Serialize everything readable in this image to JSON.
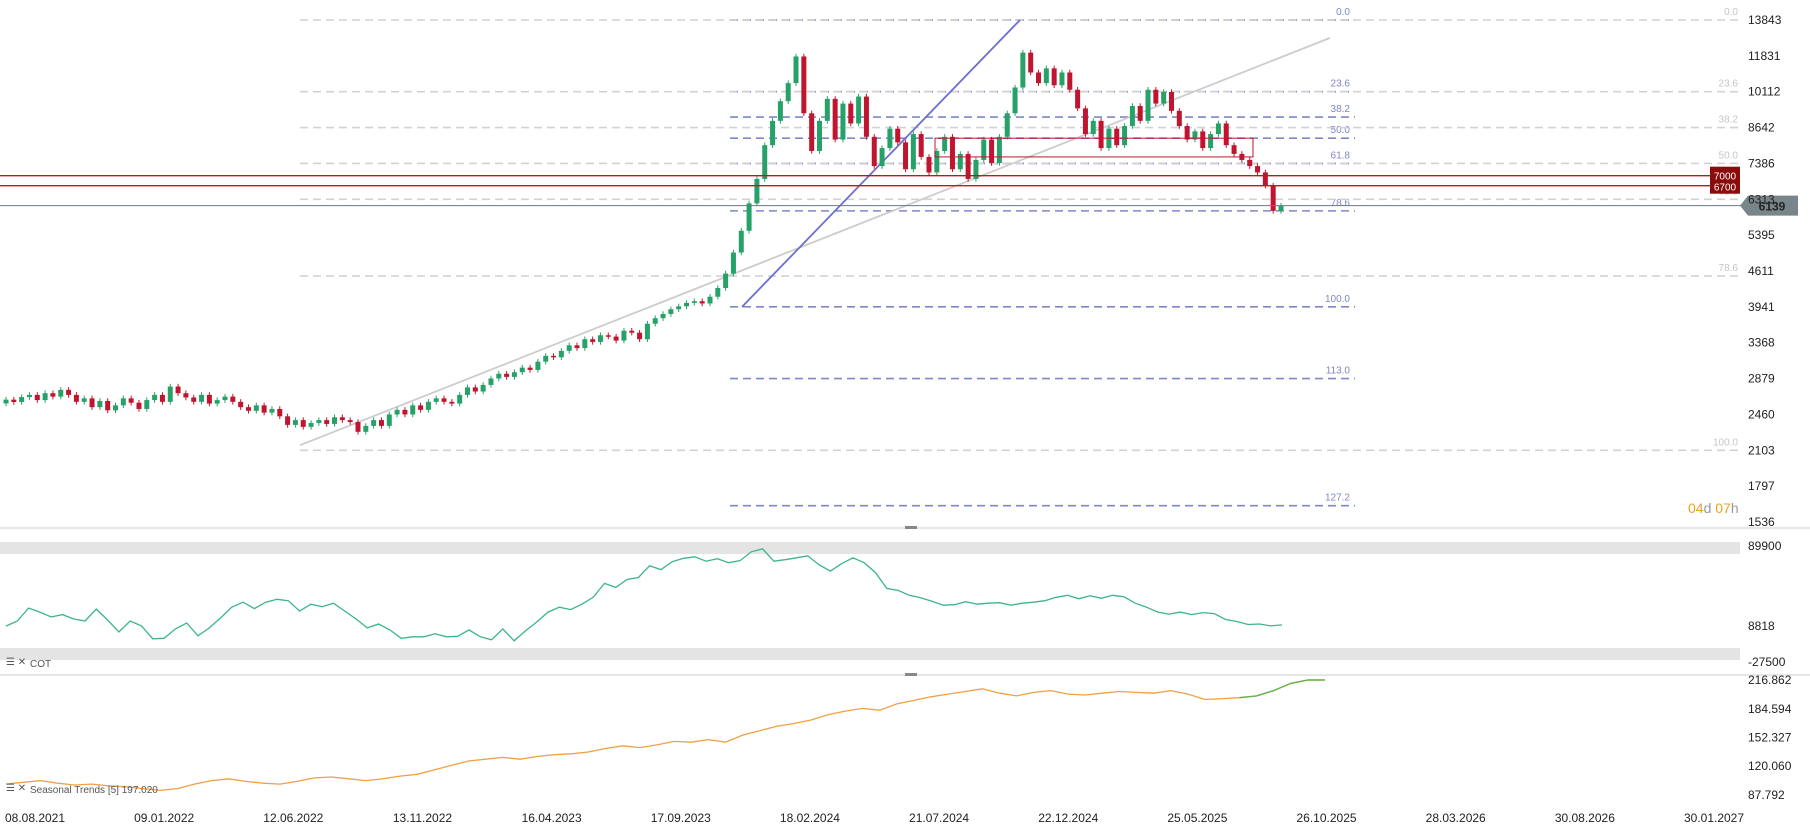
{
  "chart_data": {
    "type": "candlestick",
    "x_dates": [
      "08.08.2021",
      "09.01.2022",
      "12.06.2022",
      "13.11.2022",
      "16.04.2023",
      "17.09.2023",
      "18.02.2024",
      "21.07.2024",
      "22.12.2024",
      "25.05.2025",
      "26.10.2025",
      "28.03.2026",
      "30.08.2026",
      "30.01.2027"
    ],
    "main": {
      "y_ticks": [
        "13843",
        "11831",
        "10112",
        "8642",
        "7386",
        "6313",
        "5395",
        "4611",
        "3941",
        "3368",
        "2879",
        "2460",
        "2103",
        "1797",
        "1536"
      ],
      "last_price": "6139",
      "horizontal_levels": [
        {
          "label": "7000",
          "value": 7000,
          "color": "#b71c1c"
        },
        {
          "label": "6700",
          "value": 6700,
          "color": "#b71c1c"
        }
      ],
      "fib_primary": [
        {
          "label": "0.0",
          "value": 13843
        },
        {
          "label": "23.6",
          "value": 10112
        },
        {
          "label": "38.2",
          "value": 9050
        },
        {
          "label": "50.0",
          "value": 8250
        },
        {
          "label": "61.8",
          "value": 7386
        },
        {
          "label": "78.6",
          "value": 6000
        },
        {
          "label": "100.0",
          "value": 3941
        },
        {
          "label": "113.0",
          "value": 2879
        },
        {
          "label": "127.2",
          "value": 1650
        }
      ],
      "fib_secondary": [
        {
          "label": "0.0",
          "value": 13843
        },
        {
          "label": "23.6",
          "value": 10112
        },
        {
          "label": "38.2",
          "value": 8642
        },
        {
          "label": "50.0",
          "value": 7386
        },
        {
          "label": "61.8",
          "value": 6313
        },
        {
          "label": "78.6",
          "value": 4511
        },
        {
          "label": "100.0",
          "value": 2103
        }
      ],
      "countdown": {
        "days": "04",
        "d": "d",
        "hours": "07",
        "h": "h"
      },
      "candles": [
        [
          2582,
          2625
        ],
        [
          2625,
          2598
        ],
        [
          2598,
          2655
        ],
        [
          2655,
          2680
        ],
        [
          2680,
          2620
        ],
        [
          2620,
          2700
        ],
        [
          2700,
          2660
        ],
        [
          2660,
          2740
        ],
        [
          2740,
          2680
        ],
        [
          2680,
          2600
        ],
        [
          2600,
          2640
        ],
        [
          2640,
          2540
        ],
        [
          2540,
          2610
        ],
        [
          2610,
          2505
        ],
        [
          2505,
          2560
        ],
        [
          2560,
          2640
        ],
        [
          2640,
          2590
        ],
        [
          2590,
          2520
        ],
        [
          2520,
          2620
        ],
        [
          2620,
          2680
        ],
        [
          2680,
          2600
        ],
        [
          2600,
          2780
        ],
        [
          2780,
          2700
        ],
        [
          2700,
          2650
        ],
        [
          2650,
          2600
        ],
        [
          2600,
          2680
        ],
        [
          2680,
          2580
        ],
        [
          2580,
          2620
        ],
        [
          2620,
          2660
        ],
        [
          2660,
          2600
        ],
        [
          2600,
          2540
        ],
        [
          2540,
          2500
        ],
        [
          2500,
          2560
        ],
        [
          2560,
          2480
        ],
        [
          2480,
          2520
        ],
        [
          2520,
          2440
        ],
        [
          2440,
          2350
        ],
        [
          2350,
          2400
        ],
        [
          2400,
          2330
        ],
        [
          2330,
          2370
        ],
        [
          2370,
          2400
        ],
        [
          2400,
          2360
        ],
        [
          2360,
          2430
        ],
        [
          2430,
          2400
        ],
        [
          2400,
          2380
        ],
        [
          2380,
          2280
        ],
        [
          2280,
          2340
        ],
        [
          2340,
          2400
        ],
        [
          2400,
          2340
        ],
        [
          2340,
          2460
        ],
        [
          2460,
          2510
        ],
        [
          2510,
          2460
        ],
        [
          2460,
          2560
        ],
        [
          2560,
          2510
        ],
        [
          2510,
          2600
        ],
        [
          2600,
          2640
        ],
        [
          2640,
          2600
        ],
        [
          2600,
          2580
        ],
        [
          2580,
          2680
        ],
        [
          2680,
          2770
        ],
        [
          2770,
          2720
        ],
        [
          2720,
          2800
        ],
        [
          2800,
          2880
        ],
        [
          2880,
          2940
        ],
        [
          2940,
          2900
        ],
        [
          2900,
          2960
        ],
        [
          2960,
          3020
        ],
        [
          3020,
          2990
        ],
        [
          2990,
          3100
        ],
        [
          3100,
          3180
        ],
        [
          3180,
          3160
        ],
        [
          3160,
          3250
        ],
        [
          3250,
          3330
        ],
        [
          3330,
          3290
        ],
        [
          3290,
          3420
        ],
        [
          3420,
          3380
        ],
        [
          3380,
          3480
        ],
        [
          3480,
          3460
        ],
        [
          3460,
          3400
        ],
        [
          3400,
          3550
        ],
        [
          3550,
          3520
        ],
        [
          3520,
          3420
        ],
        [
          3420,
          3660
        ],
        [
          3660,
          3750
        ],
        [
          3750,
          3820
        ],
        [
          3820,
          3900
        ],
        [
          3900,
          3950
        ],
        [
          3950,
          4010
        ],
        [
          4010,
          4040
        ],
        [
          4040,
          4000
        ],
        [
          4000,
          4120
        ],
        [
          4120,
          4280
        ],
        [
          4280,
          4560
        ],
        [
          4560,
          5000
        ],
        [
          5000,
          5500
        ],
        [
          5500,
          6200
        ],
        [
          6200,
          6900
        ],
        [
          6900,
          8000
        ],
        [
          8000,
          8900
        ],
        [
          8900,
          9700
        ],
        [
          9700,
          10500
        ],
        [
          10500,
          11800
        ],
        [
          11800,
          9200
        ],
        [
          9200,
          7800
        ],
        [
          7800,
          8900
        ],
        [
          8900,
          9800
        ],
        [
          9800,
          8200
        ],
        [
          8200,
          9600
        ],
        [
          9600,
          8800
        ],
        [
          8800,
          9900
        ],
        [
          9900,
          8300
        ],
        [
          8300,
          7300
        ],
        [
          7300,
          7900
        ],
        [
          7900,
          8600
        ],
        [
          8600,
          8100
        ],
        [
          8100,
          7200
        ],
        [
          7200,
          8400
        ],
        [
          8400,
          7600
        ],
        [
          7600,
          7100
        ],
        [
          7100,
          7800
        ],
        [
          7800,
          8300
        ],
        [
          8300,
          7200
        ],
        [
          7200,
          7700
        ],
        [
          7700,
          6900
        ],
        [
          6900,
          7500
        ],
        [
          7500,
          8200
        ],
        [
          8200,
          7400
        ],
        [
          7400,
          8300
        ],
        [
          8300,
          9200
        ],
        [
          9200,
          10300
        ],
        [
          10300,
          12000
        ],
        [
          12000,
          11000
        ],
        [
          11000,
          10500
        ],
        [
          10500,
          11200
        ],
        [
          11200,
          10400
        ],
        [
          10400,
          11000
        ],
        [
          11000,
          10200
        ],
        [
          10200,
          9400
        ],
        [
          9400,
          8400
        ],
        [
          8400,
          8900
        ],
        [
          8900,
          7900
        ],
        [
          7900,
          8600
        ],
        [
          8600,
          8000
        ],
        [
          8000,
          8700
        ],
        [
          8700,
          9500
        ],
        [
          9500,
          8900
        ],
        [
          8900,
          10200
        ],
        [
          10200,
          9600
        ],
        [
          9600,
          10100
        ],
        [
          10100,
          9300
        ],
        [
          9300,
          8700
        ],
        [
          8700,
          8200
        ],
        [
          8200,
          8500
        ],
        [
          8500,
          7900
        ],
        [
          7900,
          8400
        ],
        [
          8400,
          8800
        ],
        [
          8800,
          8000
        ],
        [
          8000,
          7700
        ],
        [
          7700,
          7500
        ],
        [
          7500,
          7300
        ],
        [
          7300,
          7100
        ],
        [
          7100,
          6700
        ],
        [
          6700,
          6000
        ],
        [
          6000,
          6139
        ]
      ]
    },
    "cot": {
      "label": "COT",
      "y_ticks": [
        "89900",
        "8818",
        "-27500"
      ],
      "values": [
        8818,
        14000,
        27000,
        23000,
        18000,
        20500,
        16000,
        14000,
        26000,
        15000,
        3000,
        14000,
        9000,
        -4000,
        -3500,
        6000,
        12000,
        -1000,
        7000,
        17000,
        28000,
        33000,
        26500,
        33000,
        36000,
        34500,
        24000,
        31000,
        28500,
        32000,
        24000,
        16000,
        7000,
        11000,
        5000,
        -3500,
        -2000,
        -2000,
        1000,
        -2000,
        -1500,
        5000,
        -2000,
        -5000,
        6000,
        -6000,
        4000,
        13000,
        23000,
        28000,
        25500,
        31000,
        38000,
        52000,
        48000,
        56000,
        58000,
        70000,
        66000,
        74000,
        77500,
        79000,
        74500,
        77000,
        73000,
        75000,
        84000,
        87000,
        74500,
        76000,
        78000,
        80000,
        71000,
        64500,
        72000,
        78000,
        73000,
        63000,
        47000,
        45000,
        40000,
        37500,
        34000,
        30000,
        30500,
        33500,
        31000,
        32000,
        32500,
        30000,
        32000,
        33000,
        34500,
        38000,
        40000,
        36500,
        39500,
        37000,
        40000,
        38500,
        32000,
        28000,
        23000,
        21000,
        23000,
        20500,
        22500,
        21500,
        15500,
        13500,
        10500,
        11000,
        9000,
        10000
      ],
      "ylim": [
        -27500,
        89900
      ]
    },
    "seasonal": {
      "label": "Seasonal Trends [5] 197.020",
      "y_ticks": [
        "216.862",
        "184.594",
        "152.327",
        "120.060",
        "87.792"
      ],
      "ylim": [
        87.792,
        216.862
      ],
      "values": [
        100,
        102,
        104,
        101,
        99,
        100,
        98,
        97,
        95,
        93,
        95,
        100,
        104,
        106,
        103,
        101,
        100,
        103,
        107,
        108,
        106,
        104,
        106,
        109,
        111,
        116,
        121,
        126,
        128,
        130,
        128,
        131,
        133,
        134,
        136,
        140,
        143,
        141,
        144,
        148,
        147,
        150,
        147,
        155,
        160,
        165,
        168,
        172,
        178,
        182,
        185,
        183,
        190,
        194,
        198,
        201,
        204,
        207,
        202,
        199,
        203,
        205,
        201,
        200,
        202,
        204,
        203,
        202,
        205,
        201,
        195,
        196,
        197,
        199,
        205,
        213,
        220,
        222
      ]
    }
  }
}
